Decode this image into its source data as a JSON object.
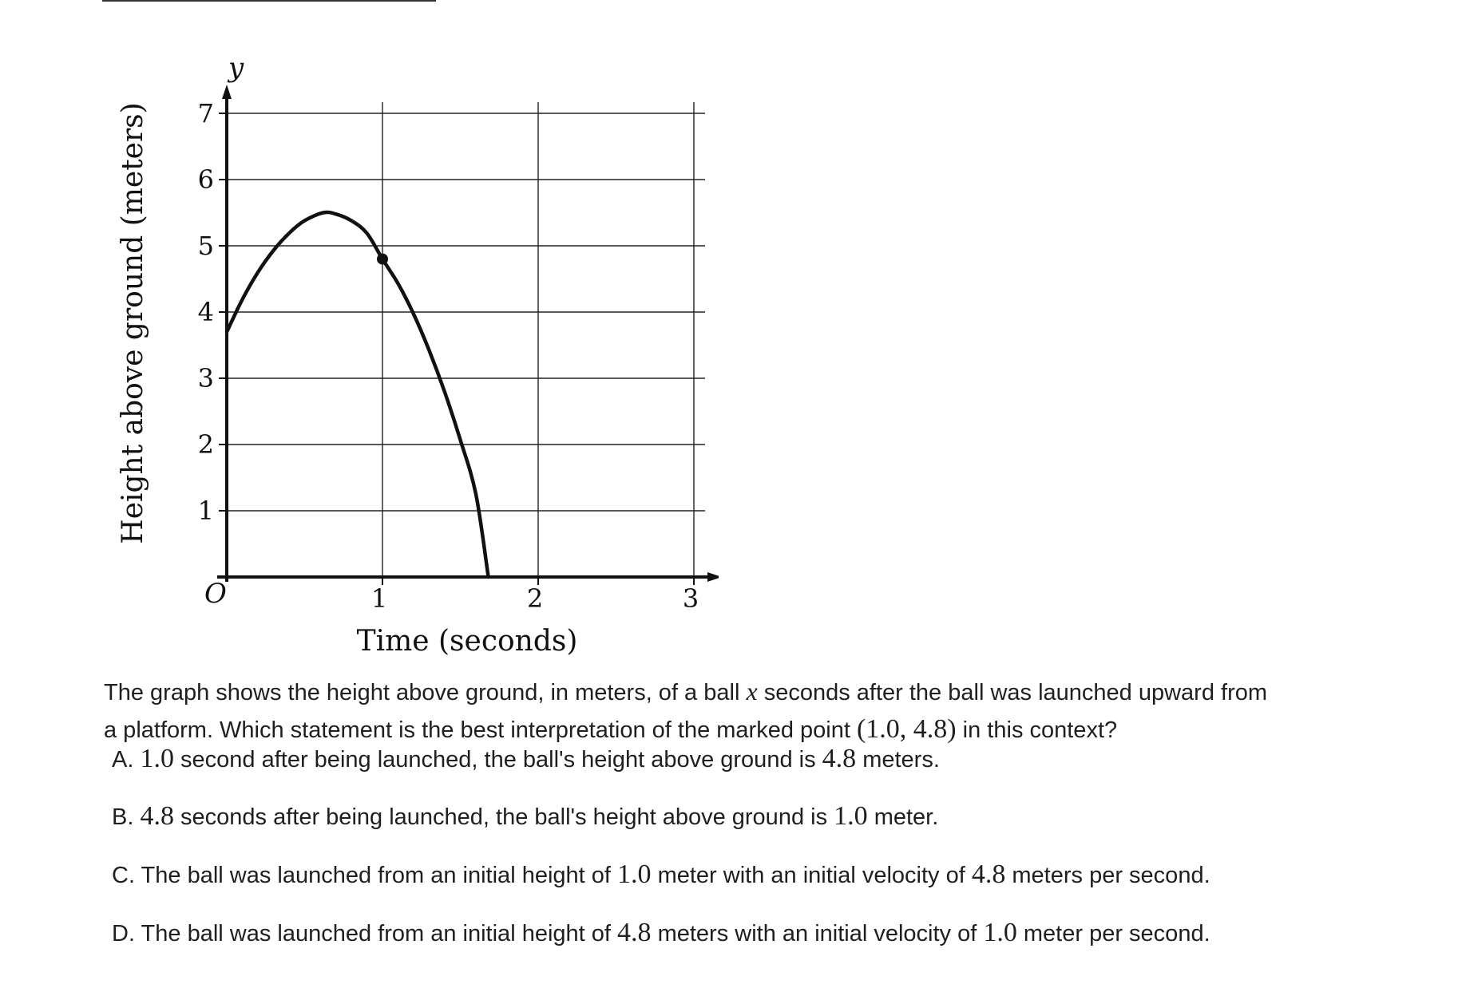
{
  "chart_data": {
    "type": "line",
    "xlabel": "Time (seconds)",
    "ylabel": "Height above ground (meters)",
    "x_axis_symbol": "x",
    "y_axis_symbol": "y",
    "origin_label": "O",
    "xlim": [
      0,
      3
    ],
    "ylim": [
      0,
      7
    ],
    "x_ticks": [
      "1",
      "2",
      "3"
    ],
    "y_ticks": [
      "1",
      "2",
      "3",
      "4",
      "5",
      "6",
      "7"
    ],
    "grid": true,
    "series": [
      {
        "x": [
          0,
          0.1,
          0.2,
          0.3,
          0.4,
          0.5,
          0.62,
          0.7,
          0.8,
          0.9,
          1.0,
          1.1,
          1.2,
          1.3,
          1.4,
          1.5,
          1.6,
          1.68
        ],
        "y": [
          3.7,
          4.19,
          4.6,
          4.93,
          5.19,
          5.38,
          5.5,
          5.48,
          5.38,
          5.19,
          4.8,
          4.43,
          3.97,
          3.42,
          2.79,
          2.07,
          1.25,
          0.0
        ]
      }
    ],
    "marked_point": {
      "x": 1.0,
      "y": 4.8
    }
  },
  "question": {
    "part1": "The graph shows the height above ground, in meters, of a ball ",
    "var": "x",
    "part2": " seconds after the ball was launched upward from",
    "part3": "a platform. Which statement is the best interpretation of the marked point ",
    "point": "(1.0, 4.8)",
    "part4": " in this context?"
  },
  "choices": [
    {
      "letter": "A. ",
      "segments": [
        {
          "t": "1.0",
          "m": true
        },
        {
          "t": " second after being launched, the ball's height above ground is "
        },
        {
          "t": "4.8",
          "m": true
        },
        {
          "t": " meters."
        }
      ]
    },
    {
      "letter": "B. ",
      "segments": [
        {
          "t": "4.8",
          "m": true
        },
        {
          "t": " seconds after being launched, the ball's height above ground is "
        },
        {
          "t": "1.0",
          "m": true
        },
        {
          "t": " meter."
        }
      ]
    },
    {
      "letter": "C. ",
      "segments": [
        {
          "t": "The ball was launched from an initial height of "
        },
        {
          "t": "1.0",
          "m": true
        },
        {
          "t": " meter with an initial velocity of "
        },
        {
          "t": "4.8",
          "m": true
        },
        {
          "t": " meters per second."
        }
      ]
    },
    {
      "letter": "D. ",
      "segments": [
        {
          "t": "The ball was launched from an initial height of "
        },
        {
          "t": "4.8",
          "m": true
        },
        {
          "t": " meters with an initial velocity of "
        },
        {
          "t": "1.0",
          "m": true
        },
        {
          "t": " meter per second."
        }
      ]
    }
  ]
}
